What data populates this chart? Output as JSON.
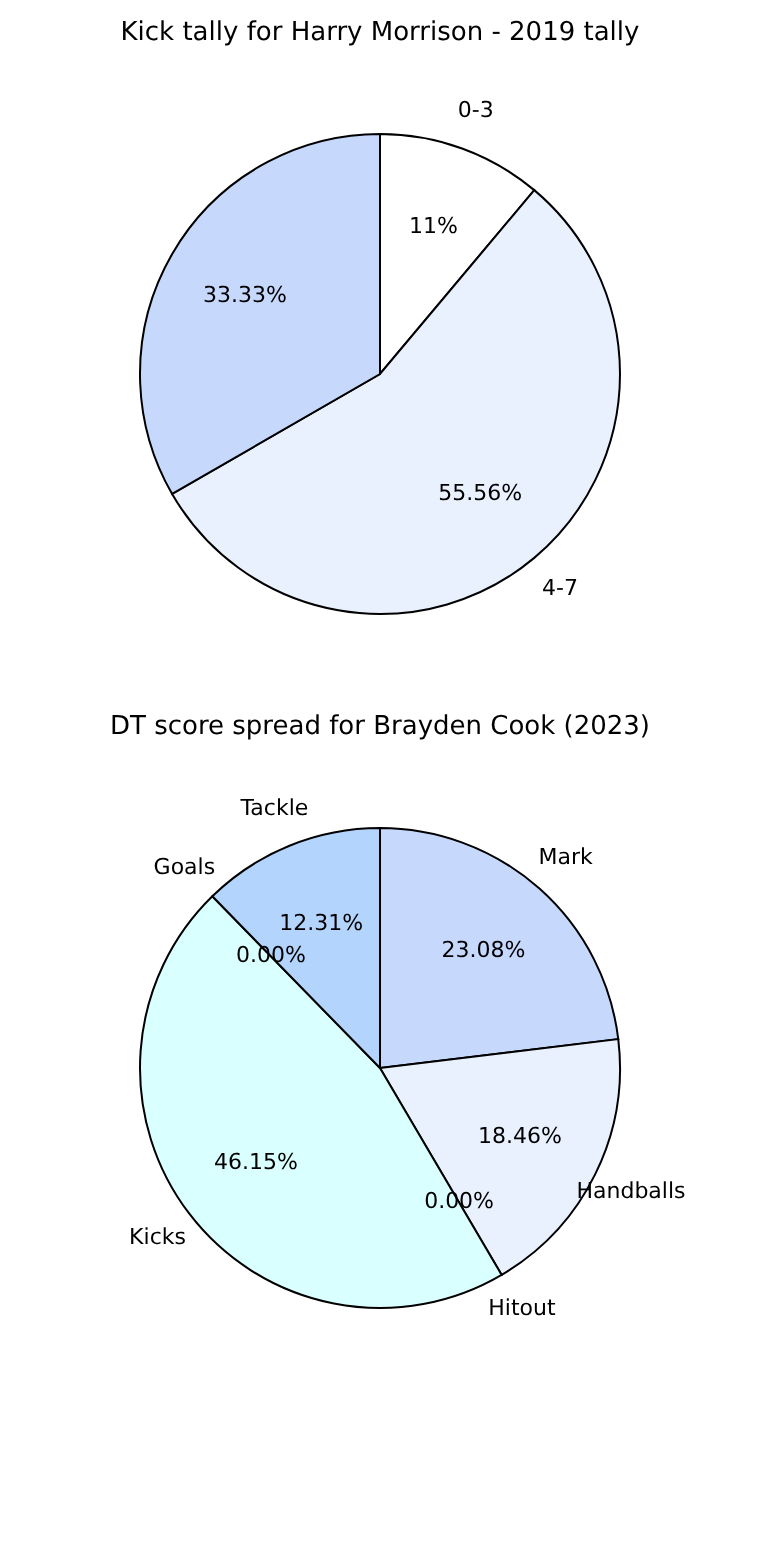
{
  "chart_data": [
    {
      "type": "pie",
      "title": "Kick tally for Harry Morrison - 2019 tally",
      "categories": [
        "0-3",
        "4-7",
        null
      ],
      "values": [
        11.11,
        55.56,
        33.33
      ],
      "value_labels": [
        "11%",
        "55.56%",
        "33.33%"
      ],
      "colors": [
        "#ffffff",
        "#eaf1fe",
        "#c6d9fd"
      ],
      "legend": false
    },
    {
      "type": "pie",
      "title": "DT score spread for Brayden Cook (2023)",
      "categories": [
        "Mark",
        "Handballs",
        "Hitout",
        "Kicks",
        "Goals",
        "Tackle"
      ],
      "values": [
        23.08,
        18.46,
        0.0,
        46.15,
        0.0,
        12.31
      ],
      "value_labels": [
        "23.08%",
        "18.46%",
        "0.00%",
        "46.15%",
        "0.00%",
        "12.31%"
      ],
      "colors": [
        "#c6d9fd",
        "#eaf1fe",
        "#e0e0e0",
        "#d9ffff",
        "#e0e0e0",
        "#b3d4fd"
      ],
      "legend": false
    }
  ]
}
